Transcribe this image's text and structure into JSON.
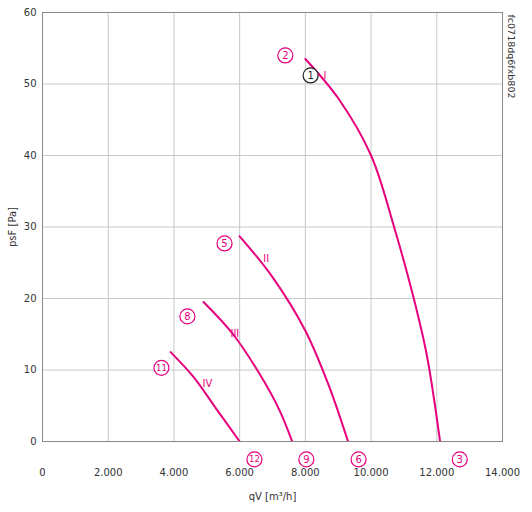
{
  "chart_data": {
    "type": "line",
    "xlabel": "qV [m³/h]",
    "ylabel": "psF [Pa]",
    "xlim": [
      0,
      14000
    ],
    "ylim": [
      0,
      60
    ],
    "xticks": [
      0,
      {
        "value": 2000,
        "label": "2.000"
      },
      {
        "value": 4000,
        "label": "4.000"
      },
      {
        "value": 6000,
        "label": "6.000"
      },
      {
        "value": 8000,
        "label": "8.000"
      },
      {
        "value": 10000,
        "label": "10.000"
      },
      {
        "value": 12000,
        "label": "12.000"
      },
      {
        "value": 14000,
        "label": "14.000"
      }
    ],
    "yticks": [
      0,
      10,
      20,
      30,
      40,
      50,
      60
    ],
    "grid": true,
    "series": [
      {
        "name": "I",
        "color": "#e6007e",
        "x": [
          8000,
          9000,
          10000,
          10700,
          11300,
          11700,
          12100
        ],
        "values": [
          53.5,
          48,
          40,
          30,
          20,
          12,
          0
        ]
      },
      {
        "name": "II",
        "color": "#e6007e",
        "x": [
          6000,
          7000,
          8000,
          8700,
          9300
        ],
        "values": [
          28.7,
          23,
          15.5,
          8,
          0
        ]
      },
      {
        "name": "III",
        "color": "#e6007e",
        "x": [
          4900,
          5800,
          6600,
          7200,
          7600
        ],
        "values": [
          19.5,
          15,
          9.5,
          4.5,
          0
        ]
      },
      {
        "name": "IV",
        "color": "#e6007e",
        "x": [
          3900,
          4600,
          5300,
          6000
        ],
        "values": [
          12.5,
          9,
          4.5,
          0
        ]
      }
    ],
    "annotations": [
      {
        "text": "2",
        "x": 7390,
        "y": 54,
        "marker": "circle",
        "color": "#e6007e"
      },
      {
        "text": "1",
        "x": 8160,
        "y": 51.2,
        "marker": "circle",
        "color": "#222222"
      },
      {
        "text": "I",
        "x": 8490,
        "y": 51.2,
        "color": "#e6007e"
      },
      {
        "text": "5",
        "x": 5540,
        "y": 27.7,
        "marker": "circle",
        "color": "#e6007e"
      },
      {
        "text": "II",
        "x": 6660,
        "y": 25.6,
        "color": "#e6007e"
      },
      {
        "text": "8",
        "x": 4410,
        "y": 17.5,
        "marker": "circle",
        "color": "#e6007e"
      },
      {
        "text": "III",
        "x": 5660,
        "y": 15.1,
        "color": "#e6007e"
      },
      {
        "text": "11",
        "x": 3620,
        "y": 10.3,
        "marker": "circle",
        "color": "#e6007e"
      },
      {
        "text": "IV",
        "x": 4810,
        "y": 8.1,
        "color": "#e6007e"
      },
      {
        "text": "3",
        "x": 12700,
        "y": -2.5,
        "marker": "circle",
        "color": "#e6007e"
      },
      {
        "text": "6",
        "x": 9620,
        "y": -2.5,
        "marker": "circle",
        "color": "#e6007e"
      },
      {
        "text": "9",
        "x": 8030,
        "y": -2.5,
        "marker": "circle",
        "color": "#e6007e"
      },
      {
        "text": "12",
        "x": 6450,
        "y": -2.5,
        "marker": "circle",
        "color": "#e6007e"
      }
    ],
    "note": "fc0718dq6fxb802"
  }
}
